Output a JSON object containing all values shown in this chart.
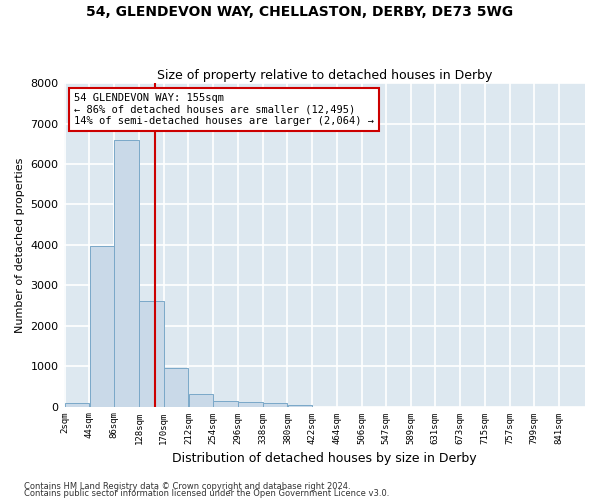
{
  "title": "54, GLENDEVON WAY, CHELLASTON, DERBY, DE73 5WG",
  "subtitle": "Size of property relative to detached houses in Derby",
  "xlabel": "Distribution of detached houses by size in Derby",
  "ylabel": "Number of detached properties",
  "footer_line1": "Contains HM Land Registry data © Crown copyright and database right 2024.",
  "footer_line2": "Contains public sector information licensed under the Open Government Licence v3.0.",
  "bar_color": "#c9d9e8",
  "bar_edge_color": "#7aa8c8",
  "background_color": "#dde8f0",
  "grid_color": "#ffffff",
  "fig_background": "#ffffff",
  "annotation_text": "54 GLENDEVON WAY: 155sqm\n← 86% of detached houses are smaller (12,495)\n14% of semi-detached houses are larger (2,064) →",
  "vline_x": 155,
  "vline_color": "#cc0000",
  "ylim": [
    0,
    8000
  ],
  "bin_edges": [
    2,
    44,
    86,
    128,
    170,
    212,
    254,
    296,
    338,
    380,
    422,
    464,
    506,
    547,
    589,
    631,
    673,
    715,
    757,
    799,
    841
  ],
  "bin_values": [
    80,
    3980,
    6600,
    2620,
    960,
    310,
    140,
    120,
    100,
    50,
    0,
    0,
    0,
    0,
    0,
    0,
    0,
    0,
    0,
    0
  ],
  "tick_labels": [
    "2sqm",
    "44sqm",
    "86sqm",
    "128sqm",
    "170sqm",
    "212sqm",
    "254sqm",
    "296sqm",
    "338sqm",
    "380sqm",
    "422sqm",
    "464sqm",
    "506sqm",
    "547sqm",
    "589sqm",
    "631sqm",
    "673sqm",
    "715sqm",
    "757sqm",
    "799sqm",
    "841sqm"
  ],
  "yticks": [
    0,
    1000,
    2000,
    3000,
    4000,
    5000,
    6000,
    7000,
    8000
  ]
}
